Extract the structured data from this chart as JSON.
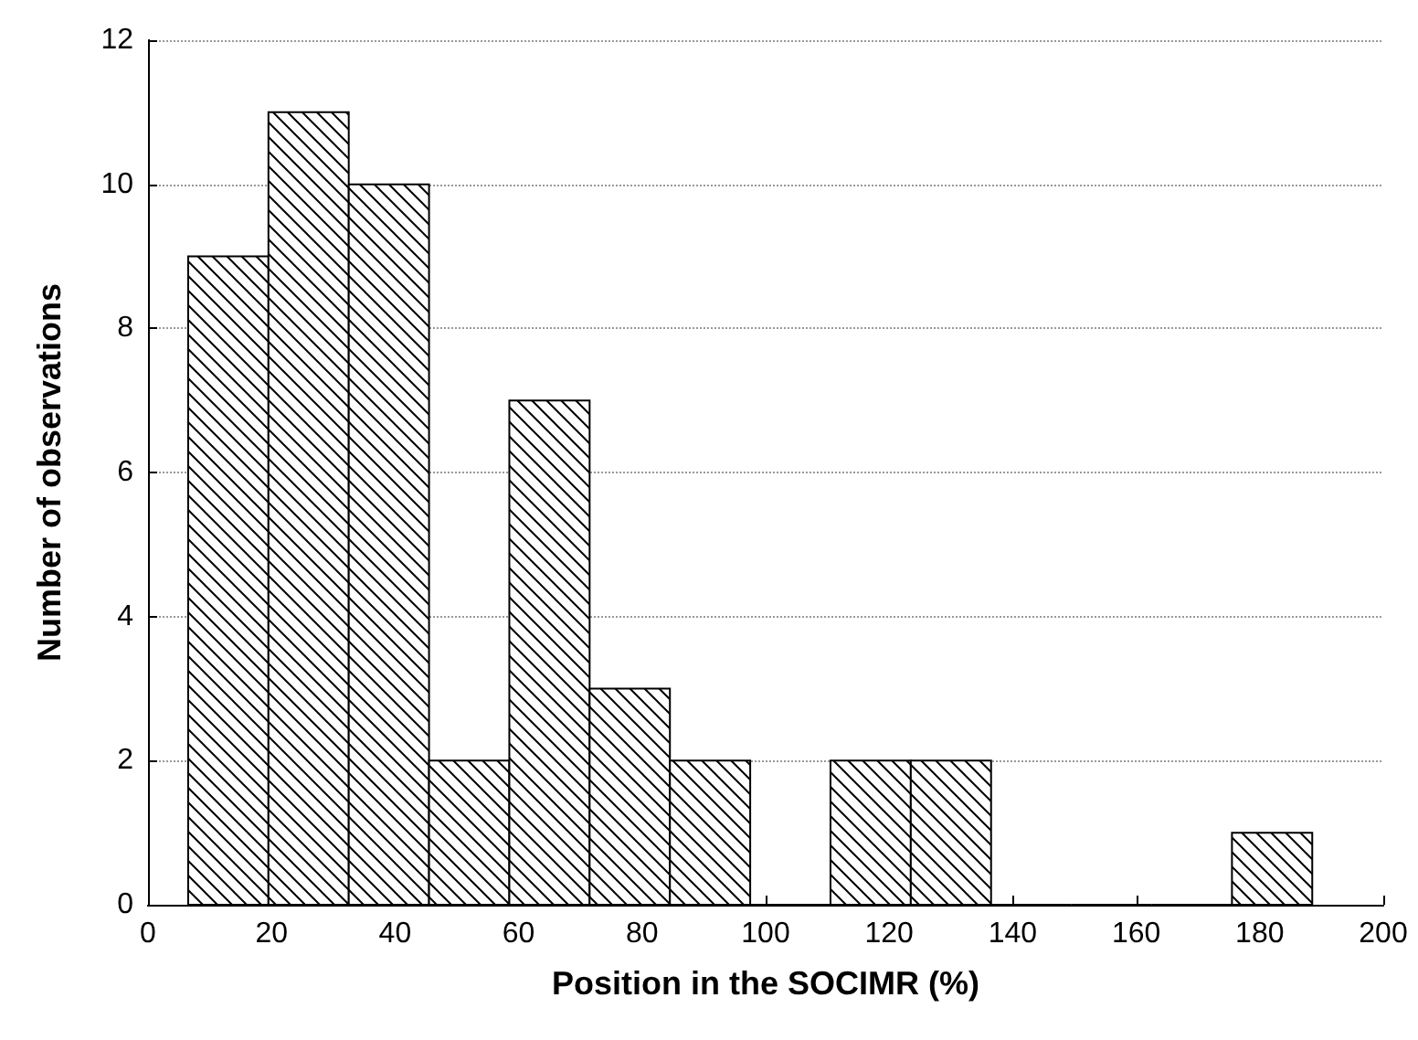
{
  "chart_data": {
    "type": "histogram",
    "xlabel": "Position in the SOCIMR (%)",
    "ylabel": "Number of observations",
    "bins": [
      6.5,
      19.5,
      32.5,
      45.5,
      58.5,
      71.5,
      84.5,
      97.5,
      110.5,
      123.5,
      136.5,
      149.5,
      162.5,
      175.5,
      188.5
    ],
    "values": [
      9,
      11,
      10,
      2,
      7,
      3,
      2,
      0,
      2,
      2,
      0,
      0,
      0,
      1
    ],
    "color": "#000000",
    "xlim": [
      0,
      200
    ],
    "xticks": [
      0,
      20,
      40,
      60,
      80,
      100,
      120,
      140,
      160,
      180,
      200
    ],
    "ylim": [
      0,
      12
    ],
    "yticks": [
      0,
      2,
      4,
      6,
      8,
      10,
      12
    ],
    "grid": "y"
  }
}
